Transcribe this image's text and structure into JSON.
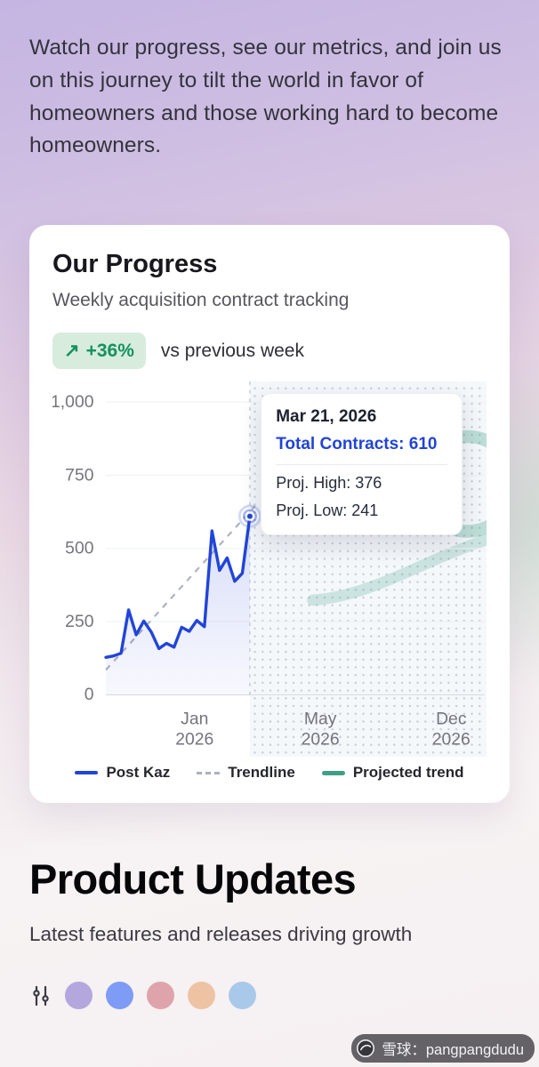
{
  "colors": {
    "accent_blue": "#2144d8",
    "badge_bg": "#d7ecdd",
    "badge_green": "#14915f",
    "trend_green": "#3f9f85",
    "trendline_gray": "#aab1c0"
  },
  "hero": {
    "paragraph": "Watch our progress, see our metrics, and join us on this journey to tilt the world in favor of homeowners and those working hard to become homeowners."
  },
  "progress_card": {
    "title": "Our Progress",
    "subtitle": "Weekly acquisition contract tracking",
    "badge": {
      "arrow": "↗",
      "delta": "+36%",
      "context": "vs previous week"
    },
    "tooltip": {
      "date": "Mar 21, 2026",
      "total": "Total Contracts: 610",
      "proj_high": "Proj. High: 376",
      "proj_low": "Proj. Low: 241"
    },
    "legend": [
      {
        "label": "Post Kaz",
        "style": "solid-blue"
      },
      {
        "label": "Trendline",
        "style": "dashed"
      },
      {
        "label": "Projected trend",
        "style": "solid-green"
      }
    ]
  },
  "chart_data": {
    "type": "line",
    "title": "Weekly acquisition contract tracking",
    "xlabel": "",
    "ylabel": "",
    "ylim": [
      0,
      1000
    ],
    "yticks": [
      0,
      250,
      500,
      750,
      1000
    ],
    "ytick_labels": [
      "0",
      "250",
      "500",
      "750",
      "1,000"
    ],
    "xtick_labels": [
      {
        "month": "Jan",
        "year": "2026"
      },
      {
        "month": "May",
        "year": "2026"
      },
      {
        "month": "Dec",
        "year": "2026"
      }
    ],
    "series": [
      {
        "name": "Post Kaz",
        "values": [
          128,
          133,
          142,
          290,
          205,
          252,
          214,
          158,
          176,
          163,
          231,
          217,
          254,
          233,
          560,
          425,
          468,
          388,
          415,
          610
        ]
      }
    ],
    "trendline": {
      "start_value": 85,
      "end_value": 645
    },
    "projection_start_fraction": 0.38,
    "highlight_point": {
      "date": "Mar 21, 2026",
      "total_contracts": 610,
      "proj_high": 376,
      "proj_low": 241
    },
    "legend_position": "bottom",
    "grid": "minimal"
  },
  "product_updates": {
    "title": "Product Updates",
    "subtitle": "Latest features and releases driving growth",
    "filter_icon": "sliders-icon",
    "color_dots": [
      "#b3a7dd",
      "#7e9bf5",
      "#dfa3ac",
      "#edc3a4",
      "#a9c9ea"
    ]
  },
  "watermark": {
    "text": "雪球：pangpangdudu"
  }
}
